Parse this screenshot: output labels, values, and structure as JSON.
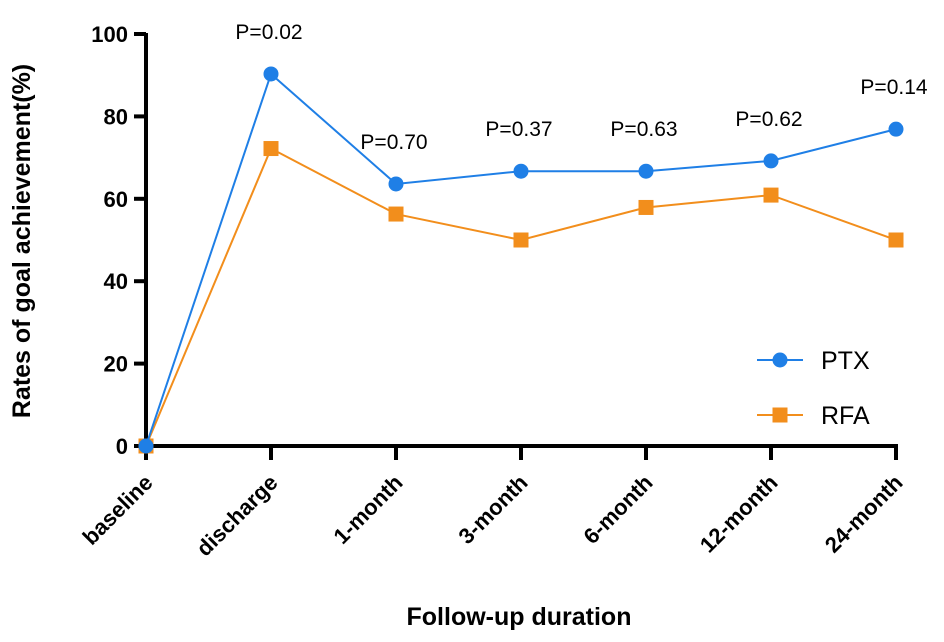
{
  "chart_data": {
    "type": "line",
    "categories": [
      "baseline",
      "discharge",
      "1-month",
      "3-month",
      "6-month",
      "12-month",
      "24-month"
    ],
    "series": [
      {
        "name": "PTX",
        "color": "#1f7fe6",
        "marker": "circle",
        "values": [
          0,
          90.3,
          63.6,
          66.7,
          66.7,
          69.2,
          76.9
        ]
      },
      {
        "name": "RFA",
        "color": "#f28e1c",
        "marker": "square",
        "values": [
          0,
          72.2,
          56.3,
          50.0,
          57.9,
          60.9,
          50.0
        ]
      }
    ],
    "p_values": [
      "",
      "P=0.02",
      "P=0.70",
      "P=0.37",
      "P=0.63",
      "P=0.62",
      "P=0.14"
    ],
    "xlabel": "Follow-up duration",
    "ylabel": "Rates of goal achievement(%)",
    "ylim": [
      0,
      100
    ],
    "yticks": [
      0,
      20,
      40,
      60,
      80,
      100
    ],
    "legend_position": "bottom-right",
    "grid": false
  }
}
